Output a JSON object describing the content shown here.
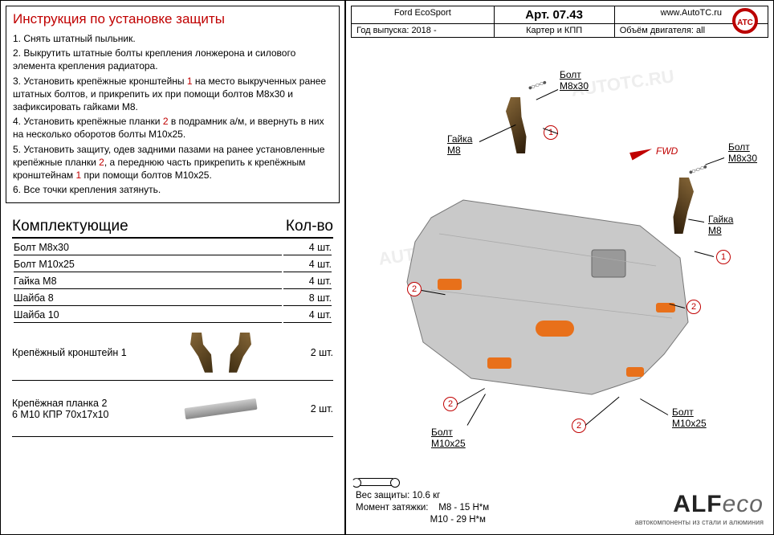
{
  "instructions": {
    "title": "Инструкция по установке защиты",
    "items": [
      "1.  Снять штатный пыльник.",
      "2.  Выкрутить штатные болты крепления лонжерона и силового элемента крепления радиатора.",
      "3.  Установить крепёжные кронштейны <span class='red'>1</span> на место выкрученных ранее штатных болтов, и прикрепить их при помощи болтов М8х30 и зафиксировать гайками М8.",
      "4.  Установить крепёжные планки <span class='red'>2</span> в подрамник а/м, и ввернуть в них на несколько оборотов болты М10х25.",
      "5.  Установить защиту, одев задними пазами  на ранее установленные крепёжные планки <span class='red'>2</span>, а переднюю часть прикрепить к крепёжным кронштейнам <span class='red'>1</span> при помощи болтов М10х25.",
      "6.  Все точки крепления затянуть."
    ]
  },
  "components": {
    "head_left": "Комплектующие",
    "head_right": "Кол-во",
    "rows": [
      {
        "name": "Болт М8х30",
        "qty": "4 шт."
      },
      {
        "name": "Болт М10х25",
        "qty": "4 шт."
      },
      {
        "name": "Гайка М8",
        "qty": "4 шт."
      },
      {
        "name": "Шайба 8",
        "qty": "8 шт."
      },
      {
        "name": "Шайба 10",
        "qty": "4 шт."
      }
    ],
    "bracket": {
      "name": "Крепёжный кронштейн 1",
      "qty": "2 шт."
    },
    "plank": {
      "name": "Крепёжная планка 2",
      "sub": "6 М10 КПР 70х17х10",
      "qty": "2 шт."
    }
  },
  "header": {
    "model": "Ford EcoSport",
    "art_label": "Арт. 07.43",
    "site": "www.AutoTC.ru",
    "year_label": "Год выпуска: 2018 -",
    "protect": "Картер и КПП",
    "engine": "Объём двигателя: all"
  },
  "diagram": {
    "fwd": "FWD",
    "labels": {
      "bolt_m8x30": "Болт\nМ8х30",
      "nut_m8": "Гайка\nМ8",
      "bolt_m10x25": "Болт\nМ10х25"
    },
    "circles": {
      "one": "1",
      "two": "2"
    },
    "shield_color": "#c9c9c9",
    "orange": "#e8701a"
  },
  "footer": {
    "weight": "Вес защиты:  10.6 кг",
    "torque_label": "Момент затяжки:",
    "torque1": "М8 - 15 Н*м",
    "torque2": "М10 - 29 Н*м",
    "logo_main": "ALF",
    "logo_eco": "eco",
    "logo_tag": "автокомпоненты из стали и алюминия"
  }
}
